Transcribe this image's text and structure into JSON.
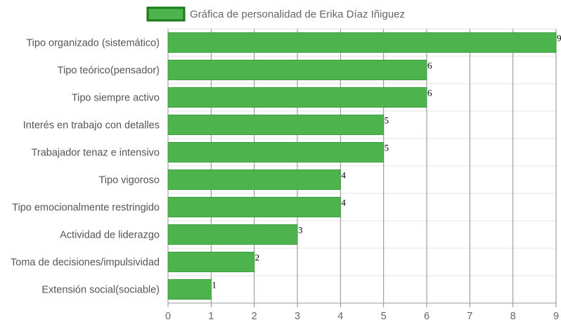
{
  "chart_data": {
    "type": "bar",
    "orientation": "horizontal",
    "legend": {
      "label": "Gráfica de personalidad de Erika Díaz Iñiguez",
      "position": "top"
    },
    "categories": [
      "Tipo organizado (sistemático)",
      "Tipo teórico(pensador)",
      "Tipo siempre activo",
      "Interés en trabajo con detalles",
      "Trabajador tenaz e intensivo",
      "Tipo vigoroso",
      "Tipo emocionalmente restringido",
      "Actividad de liderazgo",
      "Toma de decisiones/impulsividad",
      "Extensión social(sociable)"
    ],
    "series": [
      {
        "name": "Gráfica de personalidad de Erika Díaz Iñiguez",
        "values": [
          9,
          6,
          6,
          5,
          5,
          4,
          4,
          3,
          2,
          1
        ]
      }
    ],
    "data_labels": [
      "9",
      "6",
      "6",
      "5",
      "5",
      "4",
      "4",
      "3",
      "2",
      "1"
    ],
    "xticks": [
      "0",
      "1",
      "2",
      "3",
      "4",
      "5",
      "6",
      "7",
      "8",
      "9"
    ],
    "xlim": [
      0,
      9
    ],
    "grid": true,
    "colors": {
      "bar_fill": "#4db34d",
      "bar_border": "#3e9e3e",
      "legend_border": "#1a7a1a"
    }
  }
}
